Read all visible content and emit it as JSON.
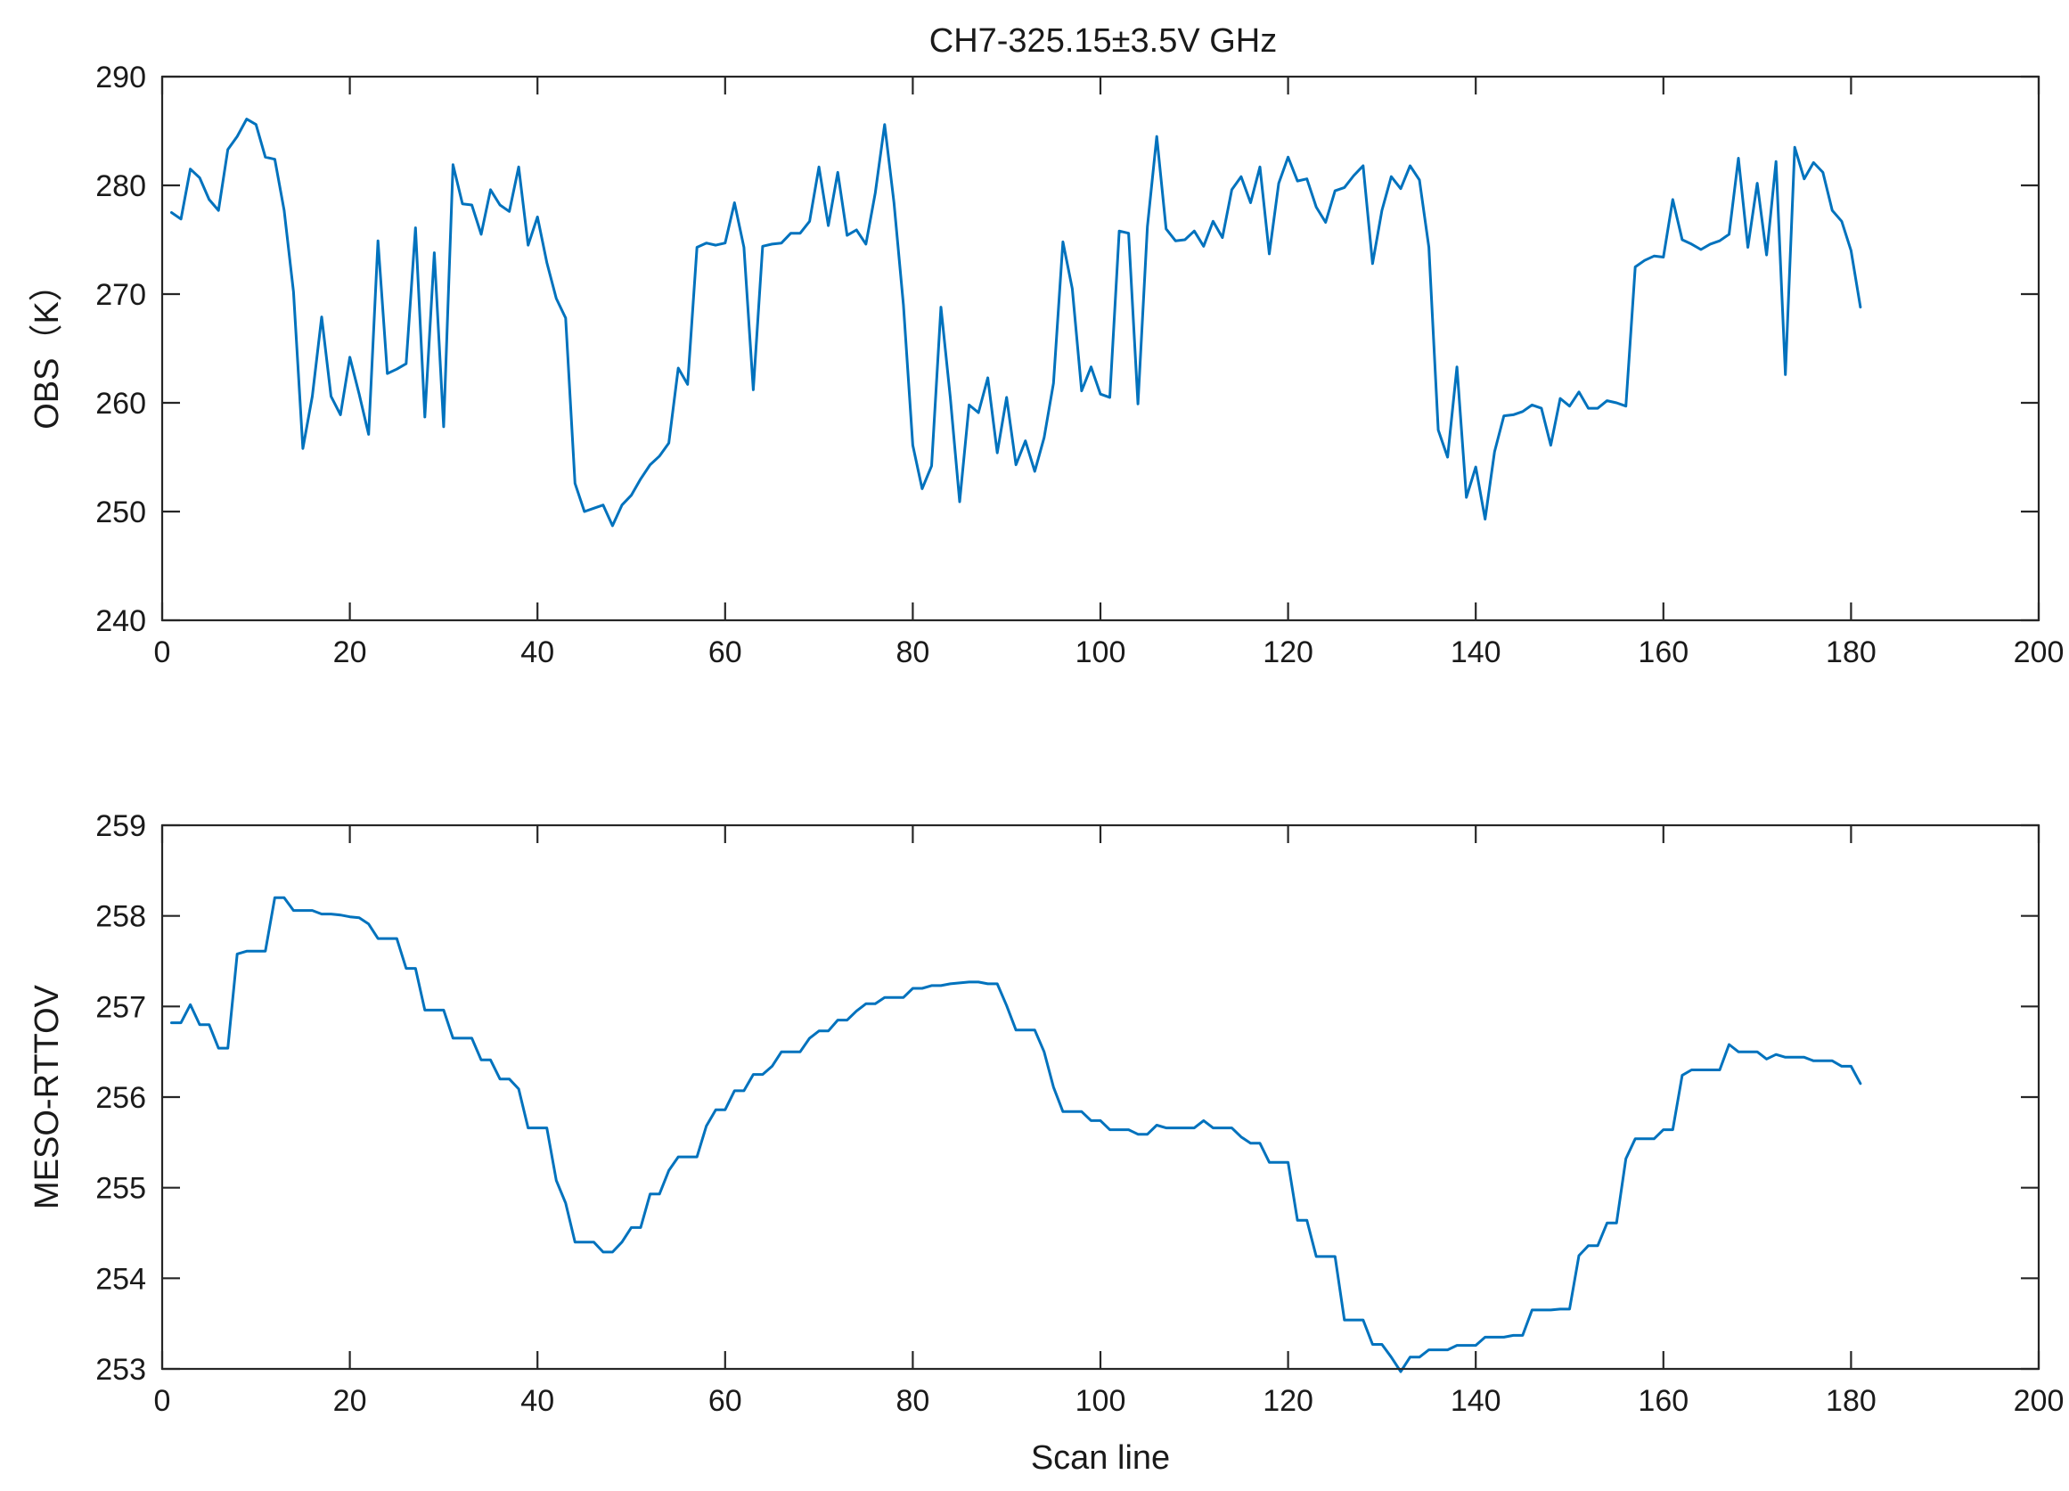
{
  "title": "CH7-325.15±3.5V GHz",
  "colors": {
    "series": "#0072BD",
    "axes": "#262626",
    "text": "#1a1a1a"
  },
  "chart_data": [
    {
      "type": "line",
      "title": "CH7-325.15±3.5V GHz",
      "xlabel": "",
      "ylabel": "OBS（K）",
      "xlim": [
        0,
        200
      ],
      "ylim": [
        240,
        290
      ],
      "xticks": [
        0,
        20,
        40,
        60,
        80,
        100,
        120,
        140,
        160,
        180,
        200
      ],
      "yticks": [
        240,
        250,
        260,
        270,
        280,
        290
      ],
      "xtick_labels": [
        "0",
        "20",
        "40",
        "60",
        "80",
        "100",
        "120",
        "140",
        "160",
        "180",
        "200"
      ],
      "ytick_labels": [
        "240",
        "250",
        "260",
        "270",
        "280",
        "290"
      ],
      "grid": false,
      "series": [
        {
          "color": "#0072BD",
          "x": [
            1,
            2,
            3,
            4,
            5,
            6,
            7,
            8,
            9,
            10,
            11,
            12,
            13,
            14,
            15,
            16,
            17,
            18,
            19,
            20,
            21,
            22,
            23,
            24,
            25,
            26,
            27,
            28,
            29,
            30,
            31,
            32,
            33,
            34,
            35,
            36,
            37,
            38,
            39,
            40,
            41,
            42,
            43,
            44,
            45,
            46,
            47,
            48,
            49,
            50,
            51,
            52,
            53,
            54,
            55,
            56,
            57,
            58,
            59,
            60,
            61,
            62,
            63,
            64,
            65,
            66,
            67,
            68,
            69,
            70,
            71,
            72,
            73,
            74,
            75,
            76,
            77,
            78,
            79,
            80,
            81,
            82,
            83,
            84,
            85,
            86,
            87,
            88,
            89,
            90,
            91,
            92,
            93,
            94,
            95,
            96,
            97,
            98,
            99,
            100,
            101,
            102,
            103,
            104,
            105,
            106,
            107,
            108,
            109,
            110,
            111,
            112,
            113,
            114,
            115,
            116,
            117,
            118,
            119,
            120,
            121,
            122,
            123,
            124,
            125,
            126,
            127,
            128,
            129,
            130,
            131,
            132,
            133,
            134,
            135,
            136,
            137,
            138,
            139,
            140,
            141,
            142,
            143,
            144,
            145,
            146,
            147,
            148,
            149,
            150,
            151,
            152,
            153,
            154,
            155,
            156,
            157,
            158,
            159,
            160,
            161,
            162,
            163,
            164,
            165,
            166,
            167,
            168,
            169,
            170,
            171,
            172,
            173,
            174,
            175,
            176,
            177,
            178,
            179,
            180,
            181
          ],
          "y": [
            277.5,
            276.9,
            281.5,
            280.7,
            278.7,
            277.7,
            283.3,
            284.5,
            286.1,
            285.6,
            282.6,
            282.4,
            277.7,
            270.2,
            255.8,
            260.6,
            267.9,
            260.6,
            258.9,
            264.2,
            260.8,
            257.1,
            274.9,
            262.7,
            263.1,
            263.6,
            276.1,
            258.7,
            273.8,
            257.8,
            281.9,
            278.3,
            278.2,
            275.5,
            279.6,
            278.2,
            277.6,
            281.7,
            274.5,
            277.1,
            272.9,
            269.6,
            267.8,
            252.6,
            250.0,
            250.3,
            250.6,
            248.7,
            250.6,
            251.5,
            253.0,
            254.3,
            255.1,
            256.3,
            263.2,
            261.7,
            274.3,
            274.7,
            274.5,
            274.7,
            278.4,
            274.3,
            261.2,
            274.4,
            274.6,
            274.7,
            275.6,
            275.6,
            276.7,
            281.7,
            276.3,
            281.2,
            275.4,
            275.9,
            274.6,
            279.3,
            285.6,
            278.4,
            269.0,
            256.1,
            252.1,
            254.2,
            268.8,
            260.5,
            250.9,
            259.8,
            259.1,
            262.3,
            255.4,
            260.5,
            254.3,
            256.5,
            253.7,
            256.8,
            261.8,
            274.8,
            270.5,
            261.1,
            263.3,
            260.8,
            260.5,
            275.8,
            275.6,
            259.9,
            276.2,
            284.5,
            276.0,
            274.9,
            275.0,
            275.8,
            274.4,
            276.7,
            275.2,
            279.6,
            280.8,
            278.4,
            281.7,
            273.7,
            280.2,
            282.6,
            280.4,
            280.6,
            278.0,
            276.6,
            279.5,
            279.8,
            280.9,
            281.8,
            272.8,
            277.7,
            280.8,
            279.7,
            281.8,
            280.5,
            274.3,
            257.5,
            255.0,
            263.3,
            251.3,
            254.1,
            249.3,
            255.5,
            258.8,
            258.9,
            259.2,
            259.8,
            259.5,
            256.1,
            260.4,
            259.7,
            261.0,
            259.5,
            259.5,
            260.2,
            260.0,
            259.7,
            272.5,
            273.1,
            273.5,
            273.4,
            278.7,
            275.0,
            274.6,
            274.1,
            274.6,
            274.9,
            275.5,
            282.5,
            274.3,
            280.2,
            273.6,
            282.2,
            262.6,
            283.5,
            280.6,
            282.1,
            281.2,
            277.7,
            276.7,
            274.0,
            268.8
          ]
        }
      ]
    },
    {
      "type": "line",
      "title": "",
      "xlabel": "Scan line",
      "ylabel": "MESO-RTTOV",
      "xlim": [
        0,
        200
      ],
      "ylim": [
        253,
        259
      ],
      "xticks": [
        0,
        20,
        40,
        60,
        80,
        100,
        120,
        140,
        160,
        180,
        200
      ],
      "yticks": [
        253,
        254,
        255,
        256,
        257,
        258,
        259
      ],
      "xtick_labels": [
        "0",
        "20",
        "40",
        "60",
        "80",
        "100",
        "120",
        "140",
        "160",
        "180",
        "200"
      ],
      "ytick_labels": [
        "253",
        "254",
        "255",
        "256",
        "257",
        "258",
        "259"
      ],
      "grid": false,
      "series": [
        {
          "color": "#0072BD",
          "x": [
            1,
            2,
            3,
            4,
            5,
            6,
            7,
            8,
            9,
            10,
            11,
            12,
            13,
            14,
            15,
            16,
            17,
            18,
            19,
            20,
            21,
            22,
            23,
            24,
            25,
            26,
            27,
            28,
            29,
            30,
            31,
            32,
            33,
            34,
            35,
            36,
            37,
            38,
            39,
            40,
            41,
            42,
            43,
            44,
            45,
            46,
            47,
            48,
            49,
            50,
            51,
            52,
            53,
            54,
            55,
            56,
            57,
            58,
            59,
            60,
            61,
            62,
            63,
            64,
            65,
            66,
            67,
            68,
            69,
            70,
            71,
            72,
            73,
            74,
            75,
            76,
            77,
            78,
            79,
            80,
            81,
            82,
            83,
            84,
            85,
            86,
            87,
            88,
            89,
            90,
            91,
            92,
            93,
            94,
            95,
            96,
            97,
            98,
            99,
            100,
            101,
            102,
            103,
            104,
            105,
            106,
            107,
            108,
            109,
            110,
            111,
            112,
            113,
            114,
            115,
            116,
            117,
            118,
            119,
            120,
            121,
            122,
            123,
            124,
            125,
            126,
            127,
            128,
            129,
            130,
            131,
            132,
            133,
            134,
            135,
            136,
            137,
            138,
            139,
            140,
            141,
            142,
            143,
            144,
            145,
            146,
            147,
            148,
            149,
            150,
            151,
            152,
            153,
            154,
            155,
            156,
            157,
            158,
            159,
            160,
            161,
            162,
            163,
            164,
            165,
            166,
            167,
            168,
            169,
            170,
            171,
            172,
            173,
            174,
            175,
            176,
            177,
            178,
            179,
            180,
            181
          ],
          "y": [
            256.82,
            256.82,
            257.02,
            256.8,
            256.8,
            256.54,
            256.54,
            257.58,
            257.61,
            257.61,
            257.61,
            258.2,
            258.2,
            258.06,
            258.06,
            258.06,
            258.02,
            258.02,
            258.01,
            257.99,
            257.98,
            257.91,
            257.75,
            257.75,
            257.75,
            257.42,
            257.42,
            256.96,
            256.96,
            256.96,
            256.65,
            256.65,
            256.65,
            256.41,
            256.41,
            256.2,
            256.2,
            256.09,
            255.66,
            255.66,
            255.66,
            255.08,
            254.83,
            254.4,
            254.4,
            254.4,
            254.29,
            254.29,
            254.4,
            254.56,
            254.56,
            254.93,
            254.93,
            255.19,
            255.34,
            255.34,
            255.34,
            255.68,
            255.86,
            255.86,
            256.07,
            256.07,
            256.25,
            256.25,
            256.34,
            256.5,
            256.5,
            256.5,
            256.65,
            256.73,
            256.73,
            256.85,
            256.85,
            256.95,
            257.03,
            257.03,
            257.1,
            257.1,
            257.1,
            257.2,
            257.2,
            257.23,
            257.23,
            257.25,
            257.26,
            257.27,
            257.27,
            257.25,
            257.25,
            257.01,
            256.74,
            256.74,
            256.74,
            256.5,
            256.11,
            255.84,
            255.84,
            255.84,
            255.74,
            255.74,
            255.64,
            255.64,
            255.64,
            255.59,
            255.59,
            255.69,
            255.66,
            255.66,
            255.66,
            255.66,
            255.74,
            255.66,
            255.66,
            255.66,
            255.56,
            255.49,
            255.49,
            255.28,
            255.28,
            255.28,
            254.64,
            254.64,
            254.24,
            254.24,
            254.24,
            253.54,
            253.54,
            253.54,
            253.27,
            253.27,
            253.13,
            252.97,
            253.13,
            253.13,
            253.21,
            253.21,
            253.21,
            253.26,
            253.26,
            253.26,
            253.35,
            253.35,
            253.35,
            253.37,
            253.37,
            253.65,
            253.65,
            253.65,
            253.66,
            253.66,
            254.25,
            254.36,
            254.36,
            254.61,
            254.61,
            255.32,
            255.54,
            255.54,
            255.54,
            255.64,
            255.64,
            256.24,
            256.3,
            256.3,
            256.3,
            256.3,
            256.58,
            256.5,
            256.5,
            256.5,
            256.42,
            256.47,
            256.44,
            256.44,
            256.44,
            256.4,
            256.4,
            256.4,
            256.34,
            256.34,
            256.15
          ]
        }
      ]
    }
  ]
}
